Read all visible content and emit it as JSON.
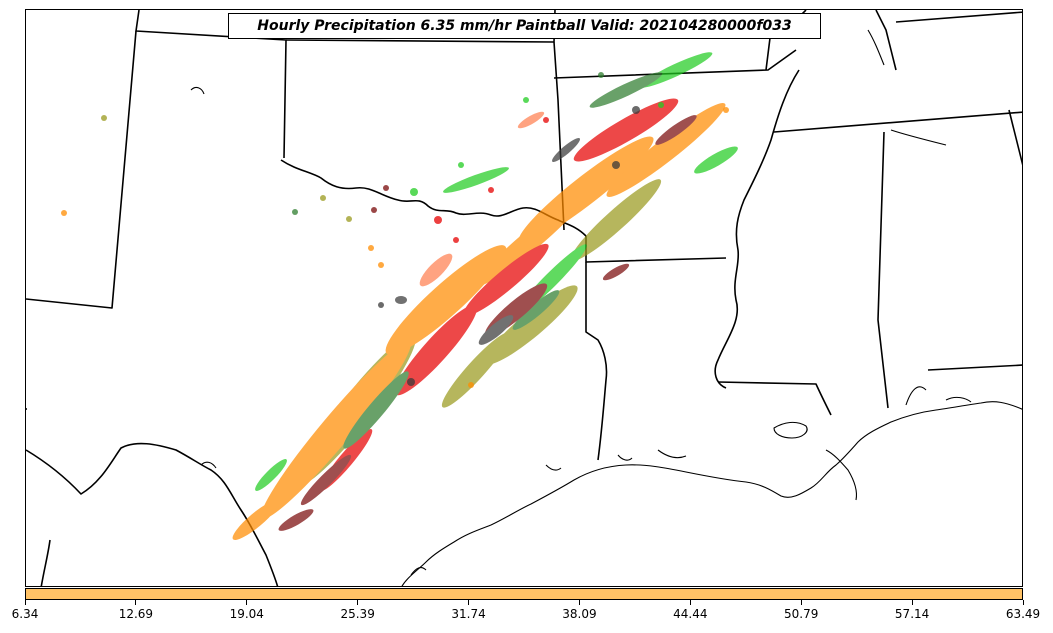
{
  "title": "Hourly Precipitation 6.35 mm/hr Paintball Valid: 202104280000f033",
  "colorbar": {
    "color": "#ffc266",
    "ticks": [
      "6.34",
      "12.69",
      "19.04",
      "25.39",
      "31.74",
      "38.09",
      "44.44",
      "50.79",
      "57.14",
      "63.49"
    ]
  },
  "colors": {
    "member_red": "#e60000",
    "member_orange": "#ff8c00",
    "member_olive": "#9a9a1e",
    "member_green": "#22cc22",
    "member_darkgreen": "#2f7d2f",
    "member_maroon": "#7a0a0a",
    "member_darkgray": "#3a3a3a",
    "member_salmon": "#ff7f50"
  }
}
